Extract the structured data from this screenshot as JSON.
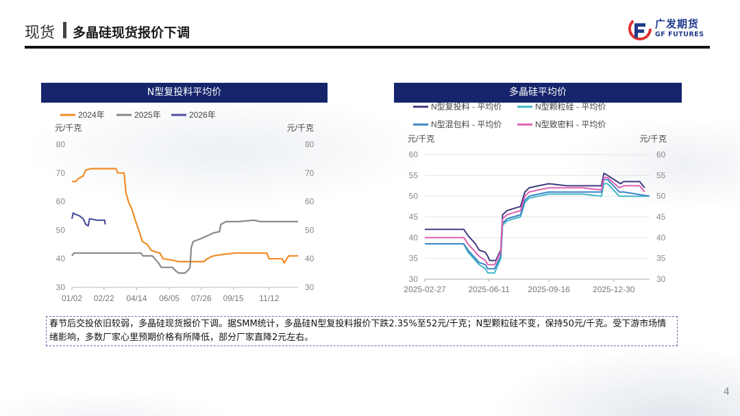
{
  "header": {
    "section": "现货",
    "title": "多晶硅现货报价下调",
    "logo_cn": "广发期货",
    "logo_en": "GF FUTURES",
    "brand_color": "#1f3b8c"
  },
  "note": "春节后交投依旧较弱，多晶硅现货报价下调。据SMM统计，多晶硅N型复投料报价下跌2.35%至52元/千克；N型颗粒硅不变，保持50元/千克。受下游市场情绪影响，多数厂家心里预期价格有所降低，部分厂家直降2元左右。",
  "page_number": "4",
  "chart_data": [
    {
      "type": "line",
      "title": "N型复投料平均价",
      "unit_left": "元/千克",
      "unit_right": "元/千克",
      "ylim": [
        30,
        80
      ],
      "yticks": [
        "80",
        "70",
        "60",
        "50",
        "40",
        "30"
      ],
      "xticks": [
        "01/02",
        "02/22",
        "04/14",
        "06/05",
        "07/26",
        "09/15",
        "11/12"
      ],
      "x_domain_days": [
        0,
        360
      ],
      "x_tick_days": [
        0,
        51,
        103,
        155,
        206,
        257,
        314
      ],
      "legend_position": "top",
      "series": [
        {
          "name": "2024年",
          "color": "#f08a24",
          "points": [
            [
              0,
              67
            ],
            [
              6,
              67
            ],
            [
              10,
              68
            ],
            [
              18,
              69
            ],
            [
              22,
              71
            ],
            [
              30,
              71.5
            ],
            [
              70,
              71.5
            ],
            [
              73,
              70
            ],
            [
              83,
              70
            ],
            [
              86,
              63
            ],
            [
              90,
              60
            ],
            [
              96,
              57
            ],
            [
              100,
              54
            ],
            [
              108,
              49
            ],
            [
              112,
              46
            ],
            [
              120,
              45
            ],
            [
              126,
              43
            ],
            [
              132,
              42.5
            ],
            [
              140,
              42
            ],
            [
              145,
              40
            ],
            [
              160,
              39.5
            ],
            [
              170,
              39
            ],
            [
              210,
              39
            ],
            [
              215,
              40
            ],
            [
              225,
              41
            ],
            [
              240,
              41.5
            ],
            [
              260,
              42
            ],
            [
              310,
              42
            ],
            [
              314,
              40
            ],
            [
              335,
              40
            ],
            [
              338,
              38.5
            ],
            [
              342,
              40
            ],
            [
              345,
              41
            ],
            [
              360,
              41
            ]
          ]
        },
        {
          "name": "2025年",
          "color": "#888888",
          "points": [
            [
              0,
              41
            ],
            [
              3,
              42
            ],
            [
              110,
              42
            ],
            [
              113,
              41
            ],
            [
              128,
              41
            ],
            [
              132,
              40
            ],
            [
              138,
              38.5
            ],
            [
              142,
              37
            ],
            [
              160,
              37
            ],
            [
              164,
              36
            ],
            [
              170,
              35
            ],
            [
              180,
              35
            ],
            [
              185,
              36
            ],
            [
              188,
              37
            ],
            [
              190,
              44
            ],
            [
              193,
              46
            ],
            [
              205,
              47
            ],
            [
              215,
              48
            ],
            [
              225,
              49
            ],
            [
              235,
              49.5
            ],
            [
              237,
              52
            ],
            [
              245,
              53
            ],
            [
              265,
              53
            ],
            [
              290,
              53.5
            ],
            [
              300,
              53
            ],
            [
              360,
              53
            ]
          ]
        },
        {
          "name": "2026年",
          "color": "#4b4f9c",
          "points": [
            [
              0,
              54
            ],
            [
              2,
              56
            ],
            [
              6,
              55.5
            ],
            [
              12,
              55
            ],
            [
              18,
              54
            ],
            [
              22,
              52
            ],
            [
              26,
              51.5
            ],
            [
              28,
              54
            ],
            [
              40,
              53.5
            ],
            [
              52,
              53.5
            ],
            [
              53,
              52
            ]
          ]
        }
      ]
    },
    {
      "type": "line",
      "title": "多晶硅平均价",
      "unit_left": "元/千克",
      "unit_right": "元/千克",
      "ylim": [
        30,
        60
      ],
      "yticks": [
        "60",
        "55",
        "50",
        "45",
        "40",
        "35",
        "30"
      ],
      "xticks": [
        "2025-02-27",
        "2025-06-11",
        "2025-09-16",
        "2025-12-30"
      ],
      "x_domain": [
        "2025-02-27",
        "2026-02-26"
      ],
      "legend_position": "top",
      "series": [
        {
          "name": "N型复投料 - 平均价",
          "color": "#3d3a7e",
          "points": [
            [
              "2025-02-27",
              42
            ],
            [
              "2025-05-01",
              42
            ],
            [
              "2025-05-08",
              40.5
            ],
            [
              "2025-05-20",
              38.5
            ],
            [
              "2025-05-26",
              37
            ],
            [
              "2025-06-05",
              36.5
            ],
            [
              "2025-06-09",
              35.5
            ],
            [
              "2025-06-12",
              34.5
            ],
            [
              "2025-06-22",
              34.5
            ],
            [
              "2025-06-30",
              37
            ],
            [
              "2025-07-03",
              45.5
            ],
            [
              "2025-07-10",
              46.5
            ],
            [
              "2025-07-20",
              47
            ],
            [
              "2025-08-01",
              47.5
            ],
            [
              "2025-08-08",
              51
            ],
            [
              "2025-08-15",
              52
            ],
            [
              "2025-08-30",
              52.5
            ],
            [
              "2025-09-16",
              53
            ],
            [
              "2025-10-15",
              52.5
            ],
            [
              "2025-11-15",
              52.5
            ],
            [
              "2025-12-10",
              52.5
            ],
            [
              "2025-12-14",
              55.5
            ],
            [
              "2025-12-20",
              55
            ],
            [
              "2026-01-10",
              53
            ],
            [
              "2026-01-15",
              53.5
            ],
            [
              "2026-02-10",
              53.5
            ],
            [
              "2026-02-18",
              52
            ]
          ]
        },
        {
          "name": "N型颗粒硅 - 平均价",
          "color": "#3fb5c8",
          "points": [
            [
              "2025-02-27",
              38.5
            ],
            [
              "2025-05-01",
              38.5
            ],
            [
              "2025-05-08",
              36.5
            ],
            [
              "2025-05-20",
              34.5
            ],
            [
              "2025-05-26",
              33.5
            ],
            [
              "2025-06-05",
              32.5
            ],
            [
              "2025-06-09",
              31.5
            ],
            [
              "2025-06-20",
              31.5
            ],
            [
              "2025-06-30",
              35
            ],
            [
              "2025-07-03",
              43
            ],
            [
              "2025-07-10",
              44
            ],
            [
              "2025-07-20",
              44.5
            ],
            [
              "2025-08-01",
              45
            ],
            [
              "2025-08-08",
              48.5
            ],
            [
              "2025-08-15",
              49.5
            ],
            [
              "2025-08-30",
              50
            ],
            [
              "2025-09-16",
              50.5
            ],
            [
              "2025-11-10",
              50.5
            ],
            [
              "2025-12-10",
              50
            ],
            [
              "2025-12-14",
              53
            ],
            [
              "2025-12-20",
              53
            ],
            [
              "2026-01-08",
              50
            ],
            [
              "2026-01-15",
              50
            ],
            [
              "2026-02-26",
              50
            ]
          ]
        },
        {
          "name": "N型混包料 - 平均价",
          "color": "#3a84c4",
          "points": [
            [
              "2025-02-27",
              38.5
            ],
            [
              "2025-05-01",
              38.5
            ],
            [
              "2025-05-08",
              37
            ],
            [
              "2025-05-20",
              35
            ],
            [
              "2025-05-26",
              34
            ],
            [
              "2025-06-05",
              33.5
            ],
            [
              "2025-06-09",
              32.5
            ],
            [
              "2025-06-20",
              32.5
            ],
            [
              "2025-06-30",
              35.5
            ],
            [
              "2025-07-03",
              43.5
            ],
            [
              "2025-07-10",
              44.5
            ],
            [
              "2025-07-20",
              45
            ],
            [
              "2025-08-01",
              45.5
            ],
            [
              "2025-08-08",
              49
            ],
            [
              "2025-08-15",
              50
            ],
            [
              "2025-08-30",
              50.5
            ],
            [
              "2025-09-16",
              51
            ],
            [
              "2025-11-10",
              51
            ],
            [
              "2025-12-10",
              51
            ],
            [
              "2025-12-14",
              54
            ],
            [
              "2025-12-20",
              54
            ],
            [
              "2026-01-08",
              51
            ],
            [
              "2026-01-15",
              51
            ],
            [
              "2026-02-26",
              50
            ]
          ]
        },
        {
          "name": "N型致密料 - 平均价",
          "color": "#e060b0",
          "points": [
            [
              "2025-02-27",
              40
            ],
            [
              "2025-05-01",
              40
            ],
            [
              "2025-05-08",
              38.5
            ],
            [
              "2025-05-20",
              36.5
            ],
            [
              "2025-05-26",
              35.5
            ],
            [
              "2025-06-05",
              34.5
            ],
            [
              "2025-06-09",
              33.5
            ],
            [
              "2025-06-20",
              33.5
            ],
            [
              "2025-06-30",
              36.5
            ],
            [
              "2025-07-03",
              44.5
            ],
            [
              "2025-07-10",
              45.5
            ],
            [
              "2025-07-20",
              46
            ],
            [
              "2025-08-01",
              46.5
            ],
            [
              "2025-08-08",
              50
            ],
            [
              "2025-08-15",
              51
            ],
            [
              "2025-08-30",
              51.5
            ],
            [
              "2025-09-16",
              52
            ],
            [
              "2025-11-10",
              52
            ],
            [
              "2025-12-10",
              51.5
            ],
            [
              "2025-12-14",
              54.5
            ],
            [
              "2025-12-20",
              54.5
            ],
            [
              "2026-01-08",
              52
            ],
            [
              "2026-01-15",
              52.5
            ],
            [
              "2026-02-10",
              52.5
            ],
            [
              "2026-02-18",
              51
            ]
          ]
        }
      ]
    }
  ]
}
